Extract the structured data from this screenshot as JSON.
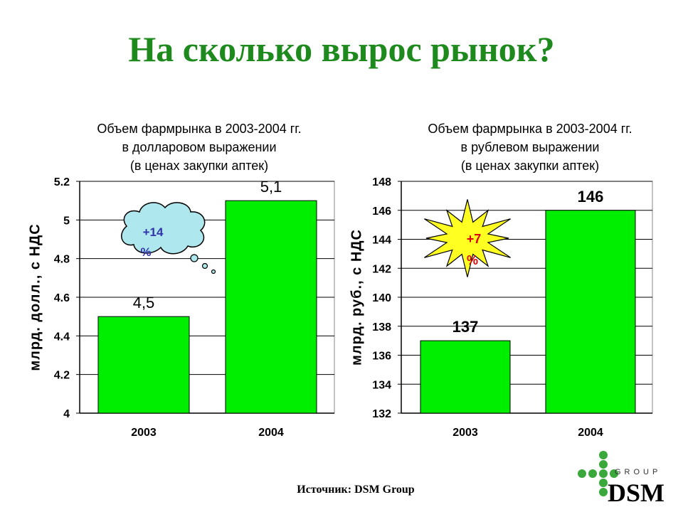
{
  "slide": {
    "title": "На сколько вырос рынок?",
    "source": "Источник: DSM Group"
  },
  "logo": {
    "text": "DSM",
    "subtext": "GROUP",
    "dot_color": "#3aa83a"
  },
  "chart_data": [
    {
      "type": "bar",
      "title_lines": [
        "Объем фармрынка в 2003-2004 гг.",
        "в долларовом выражении",
        "(в ценах закупки аптек)"
      ],
      "ylabel": "млрд. долл., с НДС",
      "categories": [
        "2003",
        "2004"
      ],
      "values": [
        4.5,
        5.1
      ],
      "value_labels": [
        "4,5",
        "5,1"
      ],
      "ylim": [
        4,
        5.2
      ],
      "yticks": [
        4,
        4.2,
        4.4,
        4.6,
        4.8,
        5,
        5.2
      ],
      "ytick_labels": [
        "4",
        "4.2",
        "4.4",
        "4.6",
        "4.8",
        "5",
        "5.2"
      ],
      "grid": true,
      "bar_color": "#00ee00",
      "callout": {
        "shape": "thought-cloud",
        "line1": "+14",
        "line2": "%",
        "fill": "#aee8ee",
        "text_color": "#3333aa"
      }
    },
    {
      "type": "bar",
      "title_lines": [
        "Объем фармрынка в 2003-2004 гг.",
        "в рублевом выражении",
        "(в ценах закупки аптек)"
      ],
      "ylabel": "млрд. руб., с НДС",
      "categories": [
        "2003",
        "2004"
      ],
      "values": [
        137,
        146
      ],
      "value_labels": [
        "137",
        "146"
      ],
      "ylim": [
        132,
        148
      ],
      "yticks": [
        132,
        134,
        136,
        138,
        140,
        142,
        144,
        146,
        148
      ],
      "ytick_labels": [
        "132",
        "134",
        "136",
        "138",
        "140",
        "142",
        "144",
        "146",
        "148"
      ],
      "grid": true,
      "bar_color": "#00ee00",
      "callout": {
        "shape": "starburst",
        "line1": "+7",
        "line2": "%",
        "fill": "#ffff22",
        "text_color": "#dd0000"
      }
    }
  ]
}
